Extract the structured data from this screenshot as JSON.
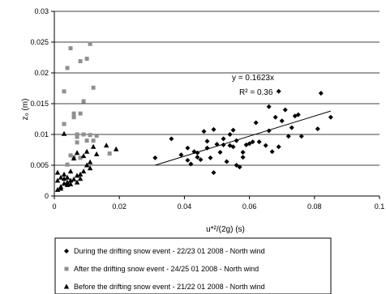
{
  "chart_data": {
    "type": "scatter",
    "xlabel": "u*²/(2g)   (s)",
    "ylabel": "z₀ (m)",
    "xlim": [
      0,
      0.1
    ],
    "ylim": [
      0,
      0.03
    ],
    "x_ticks": [
      "0",
      "0.02",
      "0.04",
      "0.06",
      "0.08",
      "0.1"
    ],
    "y_ticks": [
      "0",
      "0.005",
      "0.01",
      "0.015",
      "0.02",
      "0.025",
      "0.03"
    ],
    "grid": "horizontal",
    "legend_position": "bottom",
    "annotations": [
      "y = 0.1623x",
      "R² = 0.36"
    ],
    "trendline": {
      "x": [
        0.031,
        0.085
      ],
      "y": [
        0.005,
        0.0138
      ]
    },
    "series": [
      {
        "name": "During the drifting snow event - 22/23 01 2008 - North wind",
        "marker": "diamond",
        "color": "#000000",
        "points": [
          [
            0.031,
            0.0062
          ],
          [
            0.036,
            0.0093
          ],
          [
            0.039,
            0.0067
          ],
          [
            0.041,
            0.0078
          ],
          [
            0.041,
            0.0058
          ],
          [
            0.042,
            0.0052
          ],
          [
            0.043,
            0.0072
          ],
          [
            0.044,
            0.0063
          ],
          [
            0.044,
            0.007
          ],
          [
            0.045,
            0.0059
          ],
          [
            0.046,
            0.0105
          ],
          [
            0.047,
            0.0078
          ],
          [
            0.047,
            0.0089
          ],
          [
            0.048,
            0.0062
          ],
          [
            0.049,
            0.0038
          ],
          [
            0.049,
            0.0108
          ],
          [
            0.05,
            0.0084
          ],
          [
            0.051,
            0.0071
          ],
          [
            0.052,
            0.0093
          ],
          [
            0.052,
            0.0083
          ],
          [
            0.053,
            0.0056
          ],
          [
            0.054,
            0.0082
          ],
          [
            0.054,
            0.01
          ],
          [
            0.055,
            0.008
          ],
          [
            0.055,
            0.0107
          ],
          [
            0.056,
            0.009
          ],
          [
            0.056,
            0.005
          ],
          [
            0.057,
            0.0047
          ],
          [
            0.058,
            0.0071
          ],
          [
            0.058,
            0.0063
          ],
          [
            0.059,
            0.0083
          ],
          [
            0.06,
            0.0085
          ],
          [
            0.061,
            0.0088
          ],
          [
            0.062,
            0.0119
          ],
          [
            0.063,
            0.0088
          ],
          [
            0.065,
            0.0082
          ],
          [
            0.066,
            0.0106
          ],
          [
            0.066,
            0.0145
          ],
          [
            0.067,
            0.0072
          ],
          [
            0.068,
            0.0128
          ],
          [
            0.069,
            0.017
          ],
          [
            0.069,
            0.008
          ],
          [
            0.07,
            0.0122
          ],
          [
            0.071,
            0.014
          ],
          [
            0.072,
            0.0097
          ],
          [
            0.073,
            0.0111
          ],
          [
            0.074,
            0.013
          ],
          [
            0.075,
            0.0132
          ],
          [
            0.076,
            0.0097
          ],
          [
            0.081,
            0.0109
          ],
          [
            0.082,
            0.0167
          ],
          [
            0.085,
            0.0128
          ]
        ]
      },
      {
        "name": "After the drifting snow event - 24/25 01 2008 - North wind",
        "marker": "square",
        "color": "#909090",
        "points": [
          [
            0.003,
            0.0117
          ],
          [
            0.003,
            0.017
          ],
          [
            0.004,
            0.0208
          ],
          [
            0.004,
            0.0051
          ],
          [
            0.005,
            0.024
          ],
          [
            0.005,
            0.0066
          ],
          [
            0.006,
            0.0134
          ],
          [
            0.006,
            0.0128
          ],
          [
            0.006,
            0.0063
          ],
          [
            0.007,
            0.01
          ],
          [
            0.007,
            0.0087
          ],
          [
            0.007,
            0.0096
          ],
          [
            0.008,
            0.0219
          ],
          [
            0.008,
            0.0134
          ],
          [
            0.008,
            0.0062
          ],
          [
            0.009,
            0.01
          ],
          [
            0.009,
            0.0154
          ],
          [
            0.01,
            0.0223
          ],
          [
            0.01,
            0.009
          ],
          [
            0.011,
            0.0247
          ],
          [
            0.011,
            0.0099
          ],
          [
            0.012,
            0.0176
          ],
          [
            0.012,
            0.009
          ],
          [
            0.013,
            0.0098
          ],
          [
            0.017,
            0.0069
          ]
        ]
      },
      {
        "name": "Before the drifting snow event - 21/22 01 2008 - North wind",
        "marker": "triangle",
        "color": "#000000",
        "points": [
          [
            0.001,
            0.001
          ],
          [
            0.001,
            0.0025
          ],
          [
            0.001,
            0.0038
          ],
          [
            0.002,
            0.0015
          ],
          [
            0.002,
            0.003
          ],
          [
            0.002,
            0.0012
          ],
          [
            0.003,
            0.002
          ],
          [
            0.003,
            0.0028
          ],
          [
            0.003,
            0.0035
          ],
          [
            0.003,
            0.0101
          ],
          [
            0.004,
            0.0022
          ],
          [
            0.004,
            0.0018
          ],
          [
            0.004,
            0.003
          ],
          [
            0.005,
            0.0025
          ],
          [
            0.005,
            0.004
          ],
          [
            0.005,
            0.0019
          ],
          [
            0.006,
            0.0027
          ],
          [
            0.006,
            0.0061
          ],
          [
            0.007,
            0.0033
          ],
          [
            0.007,
            0.0022
          ],
          [
            0.007,
            0.007
          ],
          [
            0.008,
            0.0028
          ],
          [
            0.008,
            0.0035
          ],
          [
            0.009,
            0.0065
          ],
          [
            0.009,
            0.004
          ],
          [
            0.01,
            0.005
          ],
          [
            0.01,
            0.0072
          ],
          [
            0.011,
            0.0055
          ],
          [
            0.011,
            0.0045
          ],
          [
            0.012,
            0.008
          ],
          [
            0.013,
            0.0068
          ],
          [
            0.016,
            0.0082
          ],
          [
            0.019,
            0.0076
          ]
        ]
      }
    ]
  }
}
